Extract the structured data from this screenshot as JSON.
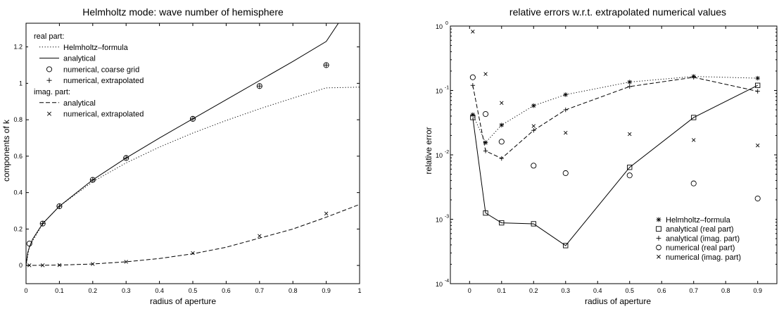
{
  "chart_data": [
    {
      "type": "line",
      "title": "Helmholtz mode: wave number of hemisphere",
      "xlabel": "radius of aperture",
      "ylabel": "components of k",
      "xlim": [
        0,
        1
      ],
      "ylim": [
        -0.1,
        1.33
      ],
      "x_ticks": [
        "0",
        "0.1",
        "0.2",
        "0.3",
        "0.4",
        "0.5",
        "0.6",
        "0.7",
        "0.8",
        "0.9",
        "1"
      ],
      "y_ticks": [
        "0",
        "0.2",
        "0.4",
        "0.6",
        "0.8",
        "1",
        "1.2"
      ],
      "y_tick_values": [
        0,
        0.2,
        0.4,
        0.6,
        0.8,
        1.0,
        1.2
      ],
      "grid": false,
      "legend_position": "top-left",
      "legend": [
        {
          "text": "real part:",
          "kind": "heading"
        },
        {
          "text": "Helmholtz–formula",
          "kind": "dotted"
        },
        {
          "text": "analytical",
          "kind": "solid"
        },
        {
          "text": "numerical, coarse grid",
          "kind": "circle"
        },
        {
          "text": "numerical, extrapolated",
          "kind": "plus"
        },
        {
          "text": "imag. part:",
          "kind": "heading"
        },
        {
          "text": "analytical",
          "kind": "dashed"
        },
        {
          "text": "numerical, extrapolated",
          "kind": "cross"
        }
      ],
      "series": [
        {
          "style": "dotted",
          "x": [
            0,
            0.01,
            0.05,
            0.1,
            0.2,
            0.3,
            0.4,
            0.5,
            0.6,
            0.7,
            0.8,
            0.9,
            1.0
          ],
          "y": [
            0,
            0.103,
            0.23,
            0.325,
            0.46,
            0.563,
            0.65,
            0.727,
            0.796,
            0.86,
            0.919,
            0.975,
            0.979
          ]
        },
        {
          "style": "solid",
          "x": [
            0,
            0.005,
            0.01,
            0.02,
            0.05,
            0.1,
            0.2,
            0.3,
            0.4,
            0.5,
            0.6,
            0.7,
            0.8,
            0.9,
            0.94
          ],
          "y": [
            0,
            0.07,
            0.1,
            0.145,
            0.23,
            0.325,
            0.47,
            0.59,
            0.7,
            0.805,
            0.91,
            1.015,
            1.12,
            1.23,
            1.34
          ]
        },
        {
          "style": "circle",
          "x": [
            0.01,
            0.05,
            0.1,
            0.2,
            0.3,
            0.5,
            0.7,
            0.9
          ],
          "y": [
            0.12,
            0.23,
            0.325,
            0.47,
            0.59,
            0.805,
            0.985,
            1.1
          ]
        },
        {
          "style": "plus",
          "x": [
            0.05,
            0.1,
            0.2,
            0.3,
            0.5,
            0.7,
            0.9
          ],
          "y": [
            0.23,
            0.325,
            0.47,
            0.59,
            0.805,
            0.985,
            1.1
          ]
        },
        {
          "style": "dashed",
          "x": [
            0,
            0.1,
            0.2,
            0.3,
            0.4,
            0.5,
            0.6,
            0.7,
            0.8,
            0.9,
            1.0
          ],
          "y": [
            0,
            0.002,
            0.008,
            0.02,
            0.038,
            0.064,
            0.1,
            0.15,
            0.2,
            0.265,
            0.335
          ]
        },
        {
          "style": "cross",
          "x": [
            0.01,
            0.05,
            0.1,
            0.2,
            0.3,
            0.5,
            0.7,
            0.9
          ],
          "y": [
            0.001,
            0.001,
            0.002,
            0.008,
            0.02,
            0.068,
            0.162,
            0.285
          ]
        }
      ]
    },
    {
      "type": "line",
      "title": "relative errors w.r.t. extrapolated numerical values",
      "xlabel": "radius of aperture",
      "ylabel": "relative error",
      "xlim": [
        -0.06,
        0.96
      ],
      "ylim": [
        0.0001,
        1
      ],
      "log_y": true,
      "x_ticks": [
        "0",
        "0.1",
        "0.2",
        "0.3",
        "0.4",
        "0.5",
        "0.6",
        "0.7",
        "0.8",
        "0.9"
      ],
      "x_tick_values": [
        0,
        0.1,
        0.2,
        0.3,
        0.4,
        0.5,
        0.6,
        0.7,
        0.8,
        0.9
      ],
      "y_ticks": [
        {
          "base": "10",
          "exp": "-4"
        },
        {
          "base": "10",
          "exp": "-3"
        },
        {
          "base": "10",
          "exp": "-2"
        },
        {
          "base": "10",
          "exp": "-1"
        },
        {
          "base": "10",
          "exp": "0"
        }
      ],
      "y_tick_values": [
        0.0001,
        0.001,
        0.01,
        0.1,
        1
      ],
      "grid": false,
      "legend_position": "bottom-right",
      "legend": [
        {
          "text": "Helmholtz–formula",
          "kind": "star"
        },
        {
          "text": "analytical (real part)",
          "kind": "square"
        },
        {
          "text": "analytical (imag. part)",
          "kind": "plus"
        },
        {
          "text": "numerical (real part)",
          "kind": "circle"
        },
        {
          "text": "numerical (imag. part)",
          "kind": "cross"
        }
      ],
      "series": [
        {
          "marker": "star",
          "line": "dotted",
          "x": [
            0.01,
            0.05,
            0.1,
            0.2,
            0.3,
            0.5,
            0.7,
            0.9
          ],
          "y": [
            0.042,
            0.0155,
            0.029,
            0.058,
            0.086,
            0.135,
            0.165,
            0.155
          ]
        },
        {
          "marker": "square",
          "line": "solid",
          "x": [
            0.01,
            0.05,
            0.1,
            0.2,
            0.3,
            0.5,
            0.7,
            0.9
          ],
          "y": [
            0.038,
            0.00125,
            0.00088,
            0.00085,
            0.00039,
            0.0064,
            0.038,
            0.12
          ]
        },
        {
          "marker": "plus",
          "line": "dashed",
          "x": [
            0.01,
            0.05,
            0.1,
            0.2,
            0.3,
            0.5,
            0.7,
            0.9
          ],
          "y": [
            0.12,
            0.0115,
            0.0088,
            0.024,
            0.05,
            0.115,
            0.16,
            0.097
          ]
        },
        {
          "marker": "circle",
          "line": "none",
          "x": [
            0.01,
            0.05,
            0.1,
            0.2,
            0.3,
            0.5,
            0.7,
            0.9
          ],
          "y": [
            0.16,
            0.043,
            0.016,
            0.0068,
            0.0052,
            0.0048,
            0.0036,
            0.0021
          ]
        },
        {
          "marker": "cross",
          "line": "none",
          "x": [
            0.01,
            0.05,
            0.1,
            0.2,
            0.3,
            0.5,
            0.7,
            0.9
          ],
          "y": [
            0.82,
            0.18,
            0.064,
            0.028,
            0.022,
            0.021,
            0.017,
            0.014
          ]
        }
      ]
    }
  ]
}
